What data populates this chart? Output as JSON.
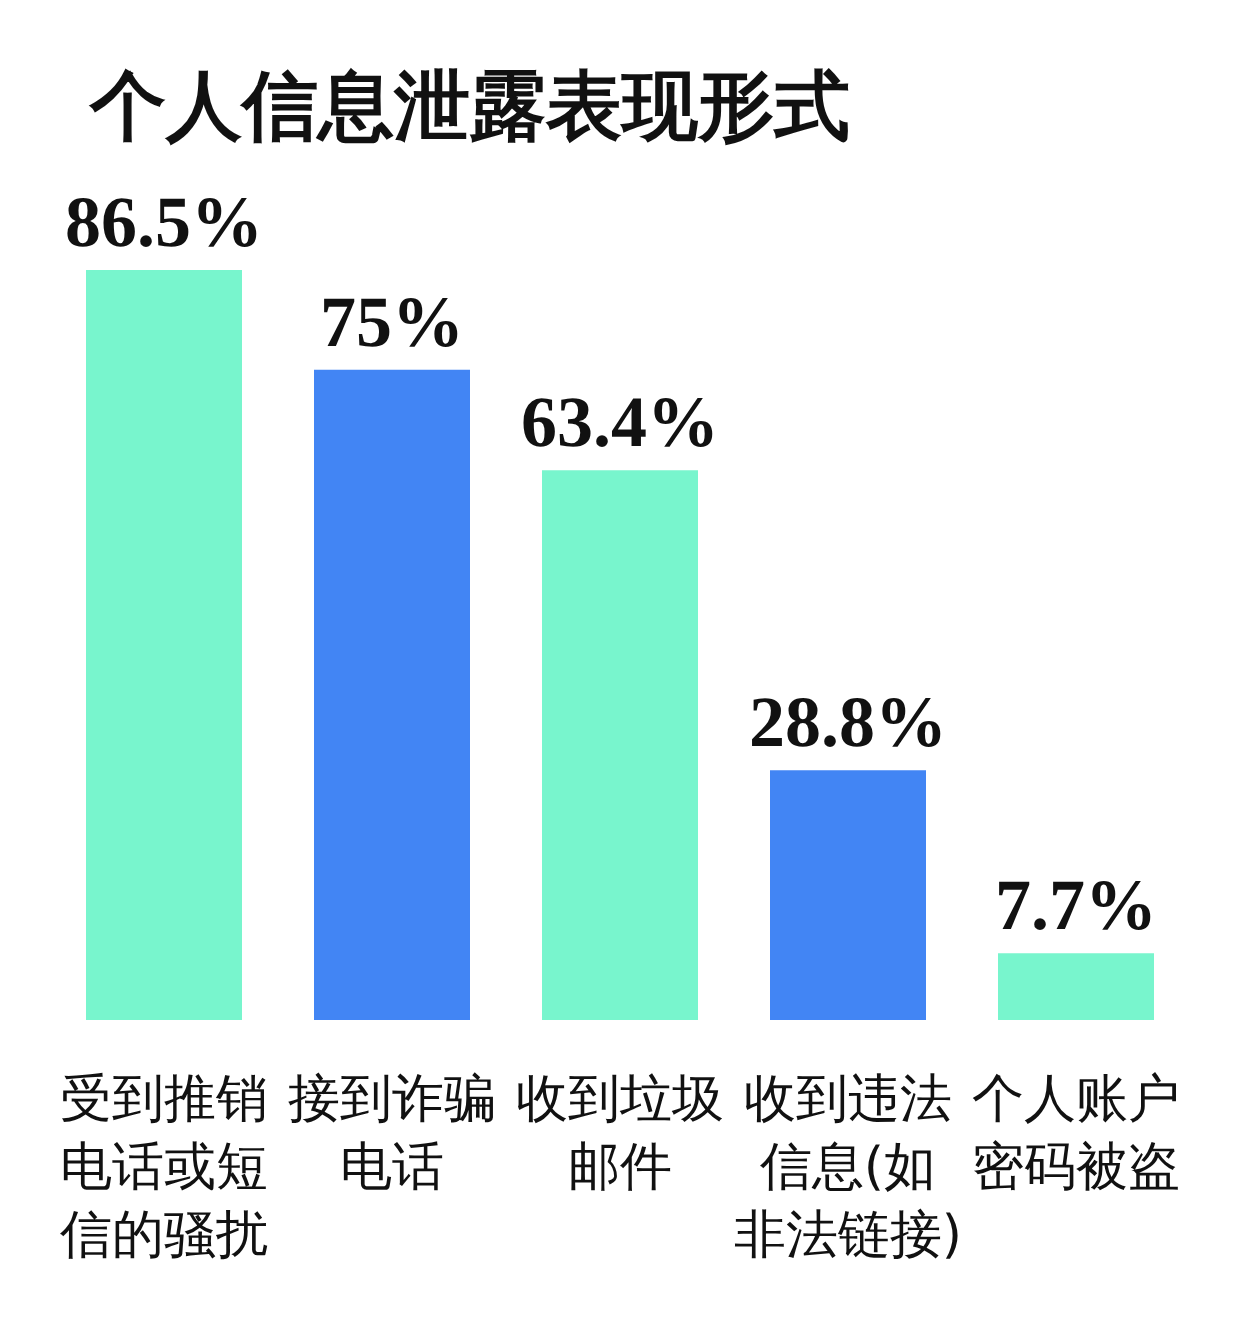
{
  "chart_data": {
    "type": "bar",
    "title": "个人信息泄露表现形式",
    "categories": [
      "受到推销电话或短信的骚扰",
      "接到诈骗电话",
      "收到垃圾邮件",
      "收到违法信息(如非法链接)",
      "个人账户密码被盗"
    ],
    "values": [
      86.5,
      75,
      63.4,
      28.8,
      7.7
    ],
    "colors": [
      "#78f5cd",
      "#4285f4",
      "#78f5cd",
      "#4285f4",
      "#78f5cd"
    ],
    "value_labels": [
      "86.5%",
      "75%",
      "63.4%",
      "28.8%",
      "7.7%"
    ]
  }
}
